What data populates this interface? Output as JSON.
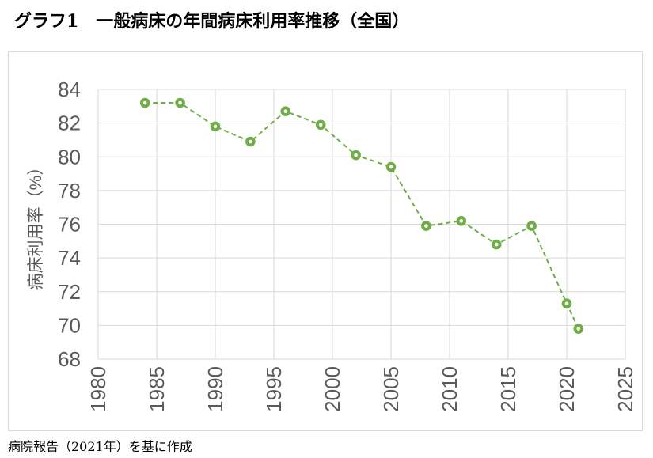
{
  "page": {
    "title": "グラフ1　一般病床の年間病床利用率推移（全国）",
    "source_note": "病院報告（2021年）を基に作成"
  },
  "chart_data": {
    "type": "line",
    "title": "グラフ1　一般病床の年間病床利用率推移（全国）",
    "series": [
      {
        "name": "病床利用率",
        "x": [
          1984,
          1987,
          1990,
          1993,
          1996,
          1999,
          2002,
          2005,
          2008,
          2011,
          2014,
          2017,
          2020,
          2021
        ],
        "values": [
          83.2,
          83.2,
          81.8,
          80.9,
          82.7,
          81.9,
          80.1,
          79.4,
          75.9,
          76.2,
          74.8,
          75.9,
          71.3,
          69.8
        ]
      }
    ],
    "xlabel": "",
    "ylabel": "病床利用率（%）",
    "xlim": [
      1980,
      2025
    ],
    "ylim": [
      68,
      84
    ],
    "x_ticks": [
      1980,
      1985,
      1990,
      1995,
      2000,
      2005,
      2010,
      2015,
      2020,
      2025
    ],
    "y_ticks": [
      68,
      70,
      72,
      74,
      76,
      78,
      80,
      82,
      84
    ],
    "grid": true,
    "legend_position": "none",
    "line_style": "dashed",
    "marker": "open-circle",
    "annotation": "病院報告（2021年）を基に作成",
    "colors": {
      "series": "#70ad47",
      "gridline": "#d9d9d9",
      "plot_border": "#d9d9d9",
      "tick_label": "#595959",
      "axis_title": "#595959",
      "chart_border": "#d9d9d9",
      "title_text": "#000000"
    }
  }
}
